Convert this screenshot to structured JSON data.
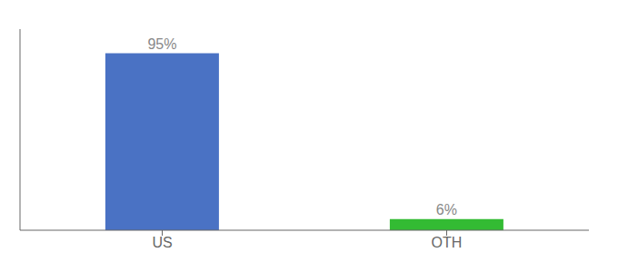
{
  "chart_data": {
    "type": "bar",
    "categories": [
      "US",
      "OTH"
    ],
    "values": [
      95,
      6
    ],
    "value_labels": [
      "95%",
      "6%"
    ],
    "colors": [
      "#4a72c4",
      "#33bb33"
    ],
    "ylim": [
      0,
      108
    ],
    "data_labels": true,
    "tick_labels": "x",
    "grid": false
  }
}
